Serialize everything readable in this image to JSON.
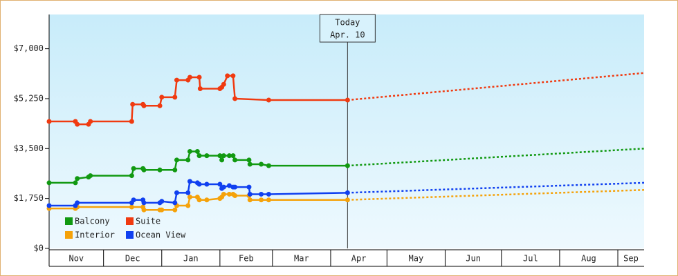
{
  "chart_data": {
    "type": "line",
    "ylim": [
      0,
      8200
    ],
    "yticks": [
      {
        "value": 0,
        "label": "$0"
      },
      {
        "value": 1750,
        "label": "$1,750"
      },
      {
        "value": 3500,
        "label": "$3,500"
      },
      {
        "value": 5250,
        "label": "$5,250"
      },
      {
        "value": 7000,
        "label": "$7,000"
      }
    ],
    "xlim": [
      1,
      318
    ],
    "xticks": [
      {
        "value": 0,
        "label": "Nov"
      },
      {
        "value": 30,
        "label": "Dec"
      },
      {
        "value": 61,
        "label": "Jan"
      },
      {
        "value": 92,
        "label": "Feb"
      },
      {
        "value": 120,
        "label": "Mar"
      },
      {
        "value": 151,
        "label": "Apr"
      },
      {
        "value": 181,
        "label": "May"
      },
      {
        "value": 212,
        "label": "Jun"
      },
      {
        "value": 242,
        "label": "Jul"
      },
      {
        "value": 273,
        "label": "Aug"
      },
      {
        "value": 304,
        "label": "Sep"
      }
    ],
    "today": {
      "x": 160,
      "label": [
        "Today",
        "Apr. 10"
      ]
    },
    "series": [
      {
        "name": "Suite",
        "color": "#f03a10",
        "x": [
          1,
          15,
          16,
          22,
          23,
          45,
          45.5,
          51,
          51.5,
          60,
          61,
          68,
          69,
          75,
          76,
          81,
          81.5,
          92,
          93,
          94,
          96,
          99,
          100,
          118,
          160
        ],
        "values": [
          4450,
          4450,
          4350,
          4350,
          4450,
          4450,
          5050,
          5050,
          5000,
          5000,
          5300,
          5300,
          5900,
          5900,
          6000,
          6000,
          5600,
          5600,
          5650,
          5750,
          6050,
          6050,
          5250,
          5200,
          5200
        ],
        "projection_x": [
          160,
          318
        ],
        "projection_values": [
          5200,
          6150
        ]
      },
      {
        "name": "Balcony",
        "color": "#119911",
        "x": [
          1,
          15,
          16,
          22,
          23,
          45,
          46,
          51,
          51.5,
          60,
          68,
          69,
          75,
          76,
          80,
          81,
          85,
          92,
          93,
          94,
          97,
          99,
          100,
          107.5,
          108,
          114,
          118,
          160
        ],
        "values": [
          2300,
          2300,
          2450,
          2500,
          2550,
          2550,
          2800,
          2800,
          2750,
          2750,
          2750,
          3100,
          3100,
          3400,
          3400,
          3250,
          3250,
          3250,
          3100,
          3250,
          3250,
          3250,
          3100,
          3100,
          2950,
          2950,
          2900,
          2900
        ],
        "projection_x": [
          160,
          318
        ],
        "projection_values": [
          2900,
          3500
        ]
      },
      {
        "name": "Interior",
        "color": "#f5a20a",
        "x": [
          1,
          15,
          16,
          45,
          51,
          51.5,
          60,
          61,
          68,
          69,
          75,
          76,
          80,
          81,
          85,
          92,
          93,
          94,
          97,
          99,
          100,
          107.5,
          108,
          114,
          118,
          160
        ],
        "values": [
          1400,
          1400,
          1450,
          1450,
          1450,
          1350,
          1350,
          1350,
          1350,
          1500,
          1500,
          1800,
          1800,
          1700,
          1700,
          1750,
          1800,
          1900,
          1900,
          1900,
          1850,
          1850,
          1700,
          1700,
          1700,
          1700
        ],
        "projection_x": [
          160,
          318
        ],
        "projection_values": [
          1700,
          2050
        ]
      },
      {
        "name": "Ocean View",
        "color": "#1040f0",
        "x": [
          1,
          15,
          16,
          45,
          46,
          51,
          51.5,
          60,
          61,
          68,
          69,
          75,
          76,
          80,
          81,
          85,
          92,
          93,
          94,
          97,
          99,
          100,
          107.5,
          108,
          114,
          118,
          160
        ],
        "values": [
          1500,
          1500,
          1600,
          1600,
          1700,
          1700,
          1600,
          1600,
          1650,
          1600,
          1950,
          1950,
          2350,
          2300,
          2250,
          2250,
          2250,
          2100,
          2150,
          2200,
          2150,
          2150,
          2150,
          1900,
          1900,
          1900,
          1950
        ],
        "projection_x": [
          160,
          318
        ],
        "projection_values": [
          1950,
          2300
        ]
      }
    ],
    "legend_order": [
      1,
      0,
      2,
      3
    ]
  }
}
